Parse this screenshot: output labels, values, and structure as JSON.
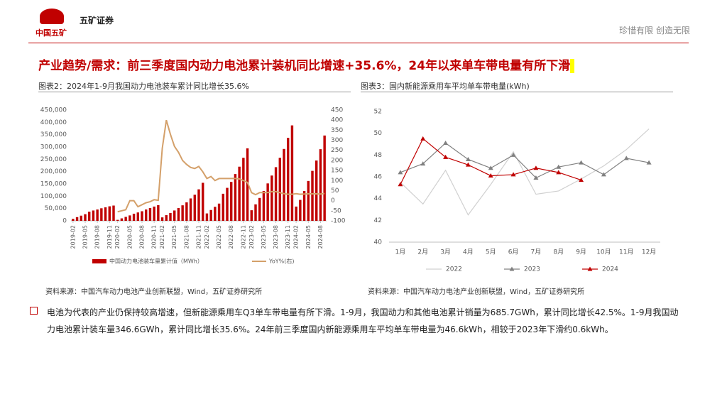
{
  "header": {
    "logo_text": "中国五矿",
    "brand": "五矿证券",
    "slogan": "珍惜有限 创造无限"
  },
  "title": "产业趋势/需求：前三季度国内动力电池累计装机同比增速+35.6%，24年以来单车带电量有所下滑",
  "bullet": "电池为代表的产业仍保持较高增速，但新能源乘用车Q3单车带电量有所下滑。1-9月，我国动力和其他电池累计销量为685.7GWh，累计同比增长42.5%。1-9月我国动力电池累计装车量346.6GWh，累计同比增长35.6%。24年前三季度国内新能源乘用车平均单车带电量为46.6kWh，相较于2023年下滑约0.6kWh。",
  "chart_data": [
    {
      "type": "bar",
      "title": "图表2：2024年1-9月我国动力电池装车累计同比增长35.6%",
      "source": "资料来源：中国汽车动力电池产业创新联盟，Wind，五矿证券研究所",
      "categories": [
        "2019-02",
        null,
        null,
        "2019-05",
        null,
        null,
        "2019-08",
        null,
        null,
        "2019-11",
        null,
        "2020-02",
        null,
        null,
        "2020-05",
        null,
        null,
        "2020-08",
        null,
        null,
        "2020-11",
        null,
        "2021-02",
        null,
        null,
        "2021-05",
        null,
        null,
        "2021-08",
        null,
        null,
        "2021-11",
        null,
        "2022-02",
        null,
        null,
        "2022-05",
        null,
        null,
        "2022-08",
        null,
        null,
        "2022-11",
        null,
        "2023-02",
        null,
        null,
        "2023-05",
        null,
        null,
        "2023-08",
        null,
        null,
        "2023-11",
        null,
        "2024-02",
        null,
        null,
        "2024-05",
        null,
        null,
        "2024-08",
        null
      ],
      "series": [
        {
          "name": "中国动力电池装车量累计值（MWh）",
          "type": "bar",
          "color": "#c00000",
          "values": [
            8000,
            15000,
            21000,
            27000,
            37000,
            42000,
            46000,
            51000,
            55000,
            59000,
            62000,
            4000,
            10000,
            16000,
            22000,
            29000,
            34000,
            39000,
            46000,
            52000,
            58000,
            63600,
            14000,
            23000,
            32000,
            42000,
            52000,
            63000,
            75000,
            91000,
            106000,
            128000,
            154500,
            30000,
            44000,
            57000,
            70000,
            110000,
            134000,
            158000,
            190000,
            220000,
            256000,
            294600,
            43000,
            67000,
            93000,
            121000,
            152000,
            184000,
            218000,
            256000,
            292000,
            337000,
            387700,
            58000,
            85000,
            121000,
            162000,
            203000,
            245000,
            291000,
            346600
          ]
        },
        {
          "name": "YoY%(右)",
          "type": "line",
          "axis": "y2",
          "color": "#d4a06a",
          "values": [
            null,
            null,
            null,
            null,
            null,
            null,
            null,
            null,
            null,
            null,
            null,
            -55,
            -50,
            -45,
            0,
            0,
            -30,
            -20,
            -10,
            -5,
            5,
            2,
            260,
            400,
            330,
            270,
            240,
            200,
            180,
            165,
            160,
            170,
            143,
            110,
            120,
            100,
            110,
            110,
            110,
            110,
            110,
            108,
            100,
            91,
            40,
            30,
            40,
            40,
            40,
            45,
            45,
            40,
            35,
            32,
            32,
            35,
            32,
            33,
            34,
            34,
            34,
            33,
            35.6
          ]
        }
      ],
      "ylim": [
        0,
        450000
      ],
      "yticks": [
        0,
        {
          "value": 50000,
          "label": "50,000"
        },
        {
          "value": 100000,
          "label": "100,000"
        },
        {
          "value": 150000,
          "label": "150,000"
        },
        {
          "value": 200000,
          "label": "200,000"
        },
        {
          "value": 250000,
          "label": "250,000"
        },
        {
          "value": 300000,
          "label": "300,000"
        },
        {
          "value": 350000,
          "label": "350,000"
        },
        {
          "value": 400000,
          "label": "400,000"
        },
        {
          "value": 450000,
          "label": "450,000"
        }
      ],
      "y2lim": [
        -100,
        450
      ],
      "y2ticks": [
        -100,
        -50,
        0,
        50,
        100,
        150,
        200,
        250,
        300,
        350,
        400,
        450
      ],
      "grid": false,
      "legend": "bottom"
    },
    {
      "type": "line",
      "title": "图表3：国内新能源乘用车平均单车带电量(kWh)",
      "source": "资料来源：中国汽车动力电池产业创新联盟，Wind，五矿证券研究所",
      "categories": [
        "1月",
        "2月",
        "3月",
        "4月",
        "5月",
        "6月",
        "7月",
        "8月",
        "9月",
        "10月",
        "11月",
        "12月"
      ],
      "series": [
        {
          "name": "2022",
          "color": "#d0d0d0",
          "values": [
            45.5,
            43.5,
            46.6,
            42.5,
            45.3,
            48.3,
            44.4,
            44.7,
            45.8,
            47.0,
            48.5,
            50.4
          ]
        },
        {
          "name": "2023",
          "color": "#808080",
          "values": [
            46.4,
            47.2,
            49.1,
            47.6,
            46.8,
            48.0,
            45.9,
            46.9,
            47.3,
            46.2,
            47.7,
            47.3
          ]
        },
        {
          "name": "2024",
          "color": "#c00000",
          "values": [
            45.3,
            49.5,
            47.8,
            47.1,
            46.1,
            46.2,
            46.8,
            46.4,
            45.7,
            null,
            null,
            null
          ]
        }
      ],
      "ylim": [
        40,
        52
      ],
      "yticks": [
        40,
        42,
        44,
        46,
        48,
        50,
        52
      ],
      "grid": false,
      "legend": "bottom"
    }
  ]
}
